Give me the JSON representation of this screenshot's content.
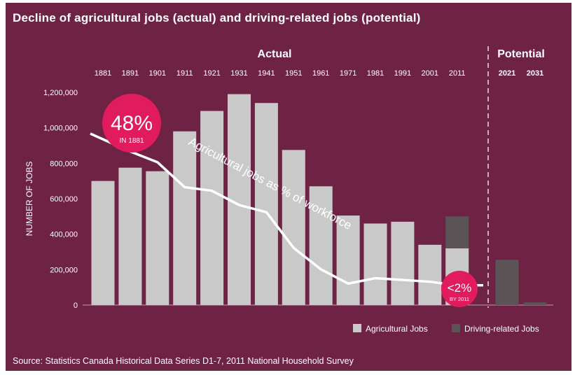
{
  "title": "Decline of agricultural jobs (actual) and driving-related jobs (potential)",
  "source": "Source: Statistics Canada Historical Data Series D1-7, 2011 National Household Survey",
  "colors": {
    "background": "#6e2345",
    "agricultural": "#c9c9c9",
    "driving": "#5a5456",
    "callout": "#e01c5f",
    "line": "#ffffff"
  },
  "chart_data": {
    "type": "bar",
    "title": "Decline of agricultural jobs (actual) and driving-related jobs (potential)",
    "ylabel": "NUMBER OF JOBS",
    "ylim": [
      0,
      1200000
    ],
    "yticks": [
      0,
      200000,
      400000,
      600000,
      800000,
      1000000,
      1200000
    ],
    "ytick_labels": [
      "0",
      "200,000",
      "400,000",
      "600,000",
      "800,000",
      "1,000,000",
      "1,200,000"
    ],
    "section_labels": {
      "actual": "Actual",
      "potential": "Potential"
    },
    "categories": [
      "1881",
      "1891",
      "1901",
      "1911",
      "1921",
      "1931",
      "1941",
      "1951",
      "1961",
      "1971",
      "1981",
      "1991",
      "2001",
      "2011",
      "2021",
      "2031"
    ],
    "potential_categories": [
      "2021",
      "2031"
    ],
    "series": [
      {
        "name": "Agricultural Jobs",
        "values": [
          700000,
          775000,
          755000,
          980000,
          1095000,
          1190000,
          1140000,
          875000,
          670000,
          505000,
          460000,
          470000,
          340000,
          320000,
          null,
          null
        ]
      },
      {
        "name": "Driving-related Jobs",
        "values": [
          null,
          null,
          null,
          null,
          null,
          null,
          null,
          null,
          null,
          null,
          null,
          null,
          null,
          180000,
          255000,
          15000
        ]
      }
    ],
    "line": {
      "label": "Agricultural jobs as % of workforce",
      "points": [
        [
          "1881",
          48
        ],
        [
          "1891",
          43
        ],
        [
          "1901",
          40
        ],
        [
          "1911",
          33
        ],
        [
          "1921",
          32
        ],
        [
          "1931",
          28
        ],
        [
          "1941",
          26
        ],
        [
          "1951",
          16
        ],
        [
          "1961",
          10
        ],
        [
          "1971",
          6
        ],
        [
          "1981",
          4
        ],
        [
          "1991",
          3.5
        ],
        [
          "2001",
          3
        ],
        [
          "2011",
          2
        ]
      ]
    },
    "annotations": [
      {
        "big": "48%",
        "small": "IN 1881"
      },
      {
        "big": "<2%",
        "small": "BY 2011"
      }
    ],
    "legend": [
      "Agricultural Jobs",
      "Driving-related Jobs"
    ],
    "legend_position": "bottom-right"
  }
}
